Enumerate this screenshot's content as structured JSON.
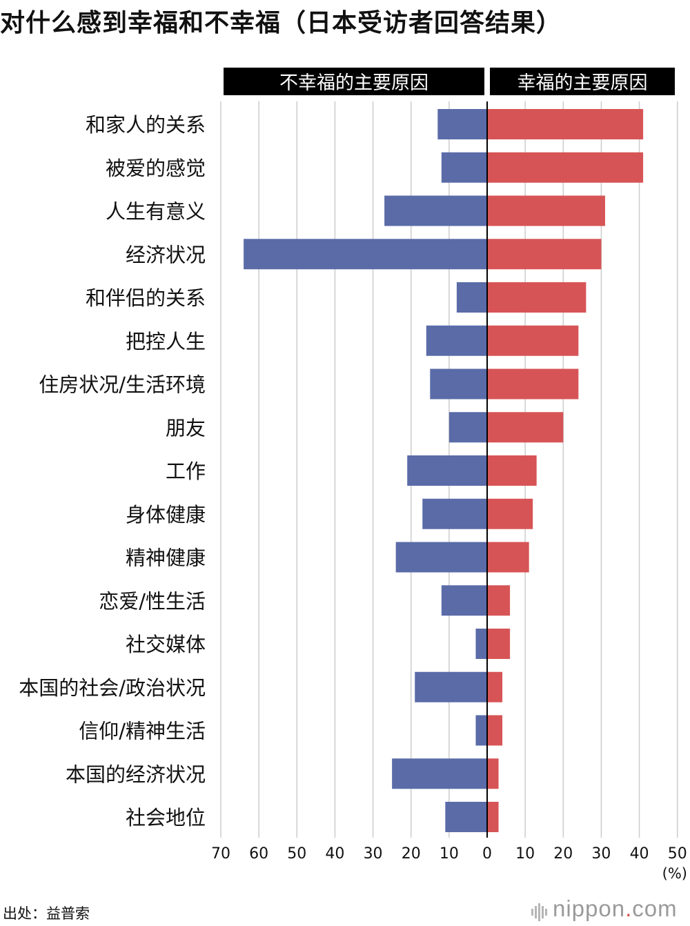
{
  "title": "对什么感到幸福和不幸福（日本受访者回答结果）",
  "source": "出处：益普索",
  "logo": {
    "name": "nippon",
    "dot": ".",
    "tld": "com"
  },
  "colors": {
    "unhappy": "#5a6ba8",
    "happy": "#d75456",
    "header_bg": "#000000",
    "grid": "#cccccc",
    "axis": "#000000"
  },
  "chart_data": {
    "type": "bar",
    "orientation": "horizontal-diverging",
    "headers": {
      "left": "不幸福的主要原因",
      "right": "幸福的主要原因"
    },
    "categories": [
      "和家人的关系",
      "被爱的感觉",
      "人生有意义",
      "经济状况",
      "和伴侣的关系",
      "把控人生",
      "住房状况/生活环境",
      "朋友",
      "工作",
      "身体健康",
      "精神健康",
      "恋爱/性生活",
      "社交媒体",
      "本国的社会/政治状况",
      "信仰/精神生活",
      "本国的经济状况",
      "社会地位"
    ],
    "series": [
      {
        "name": "不幸福的主要原因",
        "side": "left",
        "values": [
          13,
          12,
          27,
          64,
          8,
          16,
          15,
          10,
          21,
          17,
          24,
          12,
          3,
          19,
          3,
          25,
          11
        ]
      },
      {
        "name": "幸福的主要原因",
        "side": "right",
        "values": [
          41,
          41,
          31,
          30,
          26,
          24,
          24,
          20,
          13,
          12,
          11,
          6,
          6,
          4,
          4,
          3,
          3
        ]
      }
    ],
    "xlim_left": [
      0,
      70
    ],
    "xlim_right": [
      0,
      50
    ],
    "ticks_left": [
      "70",
      "60",
      "50",
      "40",
      "30",
      "20",
      "10",
      "0"
    ],
    "ticks_right": [
      "10",
      "20",
      "30",
      "40",
      "50"
    ],
    "unit": "(%)",
    "grid": true,
    "legend": "none"
  }
}
